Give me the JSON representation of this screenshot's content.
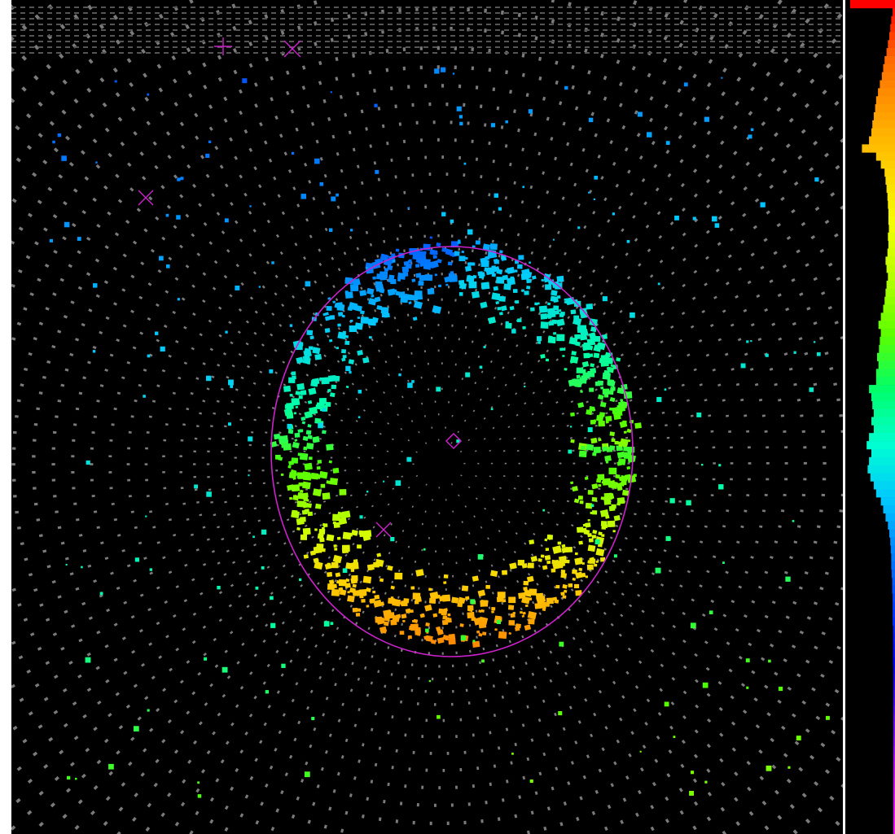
{
  "view": {
    "background": "#000000",
    "tube_color": "#7a7a7a",
    "ring_color": "#cc22cc",
    "vertex_marker": "diamond",
    "markers": [
      "cross-x",
      "cross-plus"
    ]
  },
  "palette": [
    "#ff0000",
    "#ff6a00",
    "#ffa000",
    "#ffd200",
    "#f5ff00",
    "#b4ff00",
    "#5cff00",
    "#00ff6a",
    "#00ffd2",
    "#00c8ff",
    "#0080ff",
    "#0038ff",
    "#0000ff",
    "#6a00ff",
    "#c800ff",
    "#ff00ff"
  ],
  "histogram": {
    "bin_widths": [
      0.95,
      0.05,
      0.08,
      0.1,
      0.12,
      0.15,
      0.18,
      0.22,
      0.25,
      0.28,
      0.32,
      0.36,
      0.4,
      0.42,
      0.45,
      0.48,
      0.5,
      0.55,
      0.7,
      0.4,
      0.3,
      0.22,
      0.2,
      0.18,
      0.16,
      0.15,
      0.14,
      0.14,
      0.13,
      0.15,
      0.14,
      0.16,
      0.2,
      0.18,
      0.15,
      0.18,
      0.2,
      0.22,
      0.25,
      0.3,
      0.35,
      0.3,
      0.32,
      0.34,
      0.38,
      0.35,
      0.4,
      0.4,
      0.55,
      0.5,
      0.48,
      0.45,
      0.5,
      0.45,
      0.55,
      0.6,
      0.5,
      0.55,
      0.58,
      0.52,
      0.45,
      0.4,
      0.3,
      0.25,
      0.2,
      0.15,
      0.12,
      0.1,
      0.09,
      0.08,
      0.08,
      0.07,
      0.06,
      0.06,
      0.05,
      0.05,
      0.05,
      0.05,
      0.04,
      0.04,
      0.04,
      0.04,
      0.04,
      0.03,
      0.03,
      0.03,
      0.03,
      0.03,
      0.02,
      0.02,
      0.02,
      0.02,
      0.02,
      0.02,
      0.02,
      0.02,
      0.02,
      0.02,
      0.02,
      0.02,
      0.02,
      0.02,
      0.02,
      0.02
    ]
  }
}
